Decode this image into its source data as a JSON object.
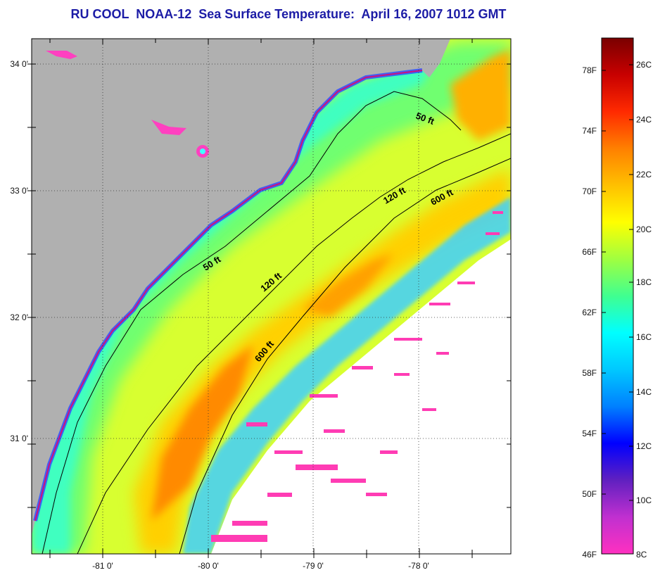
{
  "title": "RU COOL  NOAA-12  Sea Surface Temperature:  April 16, 2007 1012 GMT",
  "map": {
    "longitude_ticks": [
      "-81 0'",
      "-80 0'",
      "-79 0'",
      "-78 0'"
    ],
    "latitude_ticks": [
      "34 0'",
      "33 0'",
      "32 0'",
      "31 0'"
    ],
    "gridlines": "dotted",
    "land_color": "#b0b0b0",
    "cloud_no_data_color": "#ffffff",
    "isobath_labels": {
      "c50_a": "50 ft",
      "c50_b": "50 ft",
      "c120_a": "120 ft",
      "c120_b": "120 ft",
      "c600_a": "600 ft",
      "c600_b": "600 ft"
    }
  },
  "colorbar": {
    "fahrenheit_labels": [
      "78F",
      "74F",
      "70F",
      "66F",
      "62F",
      "58F",
      "54F",
      "50F",
      "46F"
    ],
    "celsius_labels": [
      "26C",
      "24C",
      "22C",
      "20C",
      "18C",
      "16C",
      "14C",
      "12C",
      "10C",
      "8C"
    ],
    "colors_top_to_bottom": [
      "#7a0000",
      "#c80000",
      "#ff2a00",
      "#ff8000",
      "#ffc000",
      "#ffff00",
      "#a0ff40",
      "#40ff90",
      "#00ffff",
      "#00c8ff",
      "#0080ff",
      "#0000ff",
      "#6020c0",
      "#c030d0",
      "#ff30c0"
    ]
  }
}
